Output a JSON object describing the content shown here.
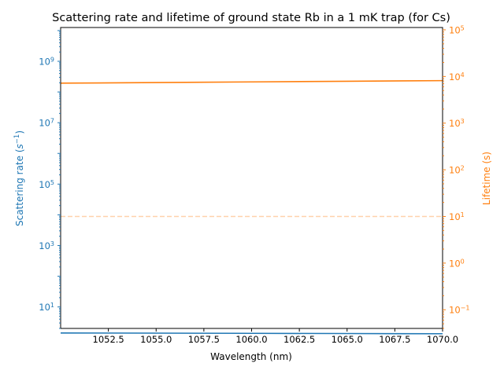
{
  "chart_data": {
    "type": "line",
    "title": "Scattering rate and lifetime of ground state Rb in a 1 mK trap (for Cs)",
    "xlabel": "Wavelength (nm)",
    "ylabel_left": "Scattering rate (s⁻¹)",
    "ylabel_left_base": "Scattering rate (",
    "ylabel_left_sym": "s",
    "ylabel_left_sup": "−1",
    "ylabel_left_close": ")",
    "ylabel_right": "Lifetime (s)",
    "xlim": [
      1050.0,
      1070.0
    ],
    "ylim_left_log10": [
      0.3,
      10.1
    ],
    "ylim_right_log10": [
      -1.4,
      5.05
    ],
    "x_ticks": [
      "1052.5",
      "1055.0",
      "1057.5",
      "1060.0",
      "1062.5",
      "1065.0",
      "1067.5",
      "1070.0"
    ],
    "x_tick_values": [
      1052.5,
      1055.0,
      1057.5,
      1060.0,
      1062.5,
      1065.0,
      1067.5,
      1070.0
    ],
    "y_left_ticks": [
      {
        "base": "10",
        "exp": "1",
        "log": 1
      },
      {
        "base": "10",
        "exp": "3",
        "log": 3
      },
      {
        "base": "10",
        "exp": "5",
        "log": 5
      },
      {
        "base": "10",
        "exp": "7",
        "log": 7
      },
      {
        "base": "10",
        "exp": "9",
        "log": 9
      }
    ],
    "y_right_ticks": [
      {
        "base": "10",
        "exp": "−1",
        "log": -1
      },
      {
        "base": "10",
        "exp": "0",
        "log": 0
      },
      {
        "base": "10",
        "exp": "1",
        "log": 1
      },
      {
        "base": "10",
        "exp": "2",
        "log": 2
      },
      {
        "base": "10",
        "exp": "3",
        "log": 3
      },
      {
        "base": "10",
        "exp": "4",
        "log": 4
      },
      {
        "base": "10",
        "exp": "5",
        "log": 5
      }
    ],
    "series": [
      {
        "axis": "left",
        "color": "#1f77b4",
        "x": [
          1050,
          1055,
          1060,
          1065,
          1070
        ],
        "y": [
          1.42,
          1.4,
          1.38,
          1.36,
          1.34
        ]
      },
      {
        "axis": "right",
        "color": "#ff7f0e",
        "x": [
          1050,
          1055,
          1060,
          1065,
          1070
        ],
        "y": [
          7200,
          7400,
          7650,
          7900,
          8150
        ]
      }
    ],
    "reference_line": {
      "axis": "right",
      "y": 10,
      "color": "#ff7f0e",
      "style": "dashed"
    },
    "colors": {
      "left": "#1f77b4",
      "right": "#ff7f0e"
    }
  }
}
